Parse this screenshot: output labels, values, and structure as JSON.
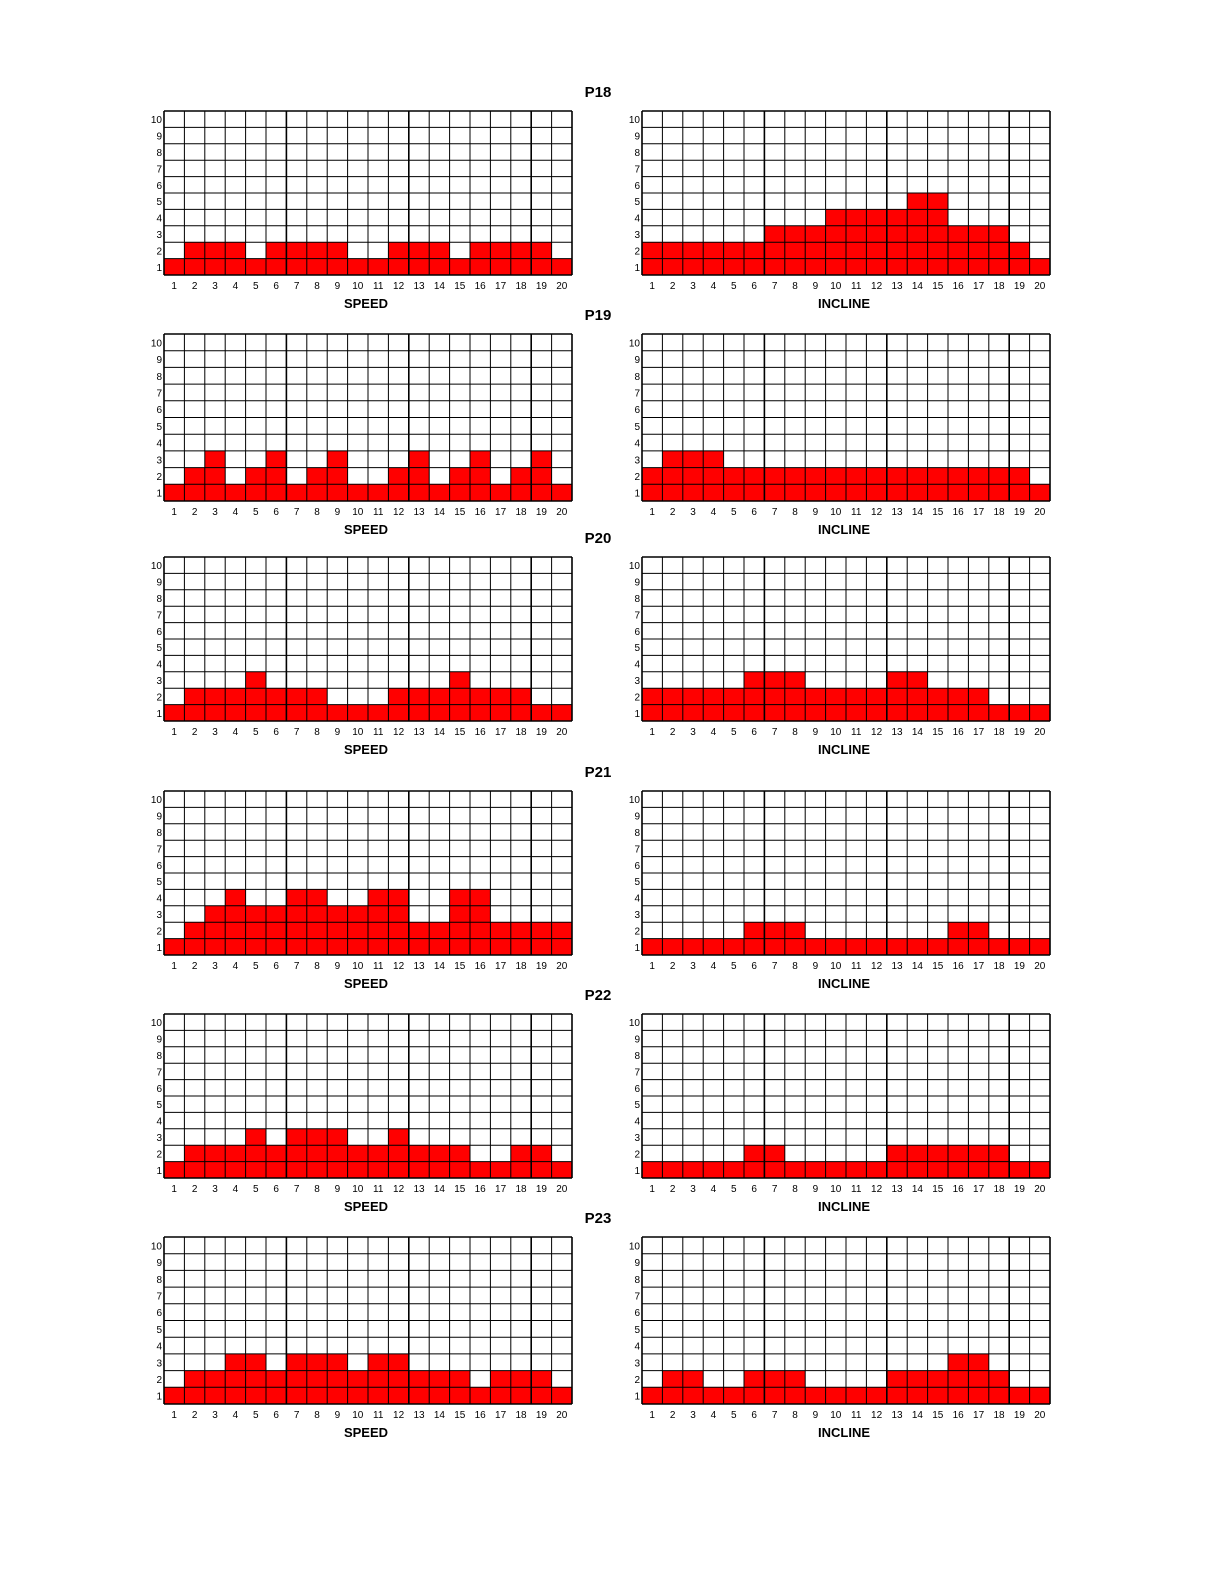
{
  "page": {
    "background": "#ffffff"
  },
  "style": {
    "bar_color": "#ff0000",
    "grid_color": "#000000"
  },
  "chart_data": [
    {
      "type": "bar",
      "program": "P18",
      "xlabel": "SPEED",
      "categories": [
        "1",
        "2",
        "3",
        "4",
        "5",
        "6",
        "7",
        "8",
        "9",
        "10",
        "11",
        "12",
        "13",
        "14",
        "15",
        "16",
        "17",
        "18",
        "19",
        "20"
      ],
      "y_ticks": [
        "1",
        "2",
        "3",
        "4",
        "5",
        "6",
        "7",
        "8",
        "9",
        "10"
      ],
      "ylim": [
        0,
        10
      ],
      "grid": true,
      "values": [
        1,
        2,
        2,
        2,
        1,
        2,
        2,
        2,
        2,
        1,
        1,
        2,
        2,
        2,
        1,
        2,
        2,
        2,
        2,
        1
      ]
    },
    {
      "type": "bar",
      "program": "P18",
      "xlabel": "INCLINE",
      "categories": [
        "1",
        "2",
        "3",
        "4",
        "5",
        "6",
        "7",
        "8",
        "9",
        "10",
        "11",
        "12",
        "13",
        "14",
        "15",
        "16",
        "17",
        "18",
        "19",
        "20"
      ],
      "y_ticks": [
        "1",
        "2",
        "3",
        "4",
        "5",
        "6",
        "7",
        "8",
        "9",
        "10"
      ],
      "ylim": [
        0,
        10
      ],
      "grid": true,
      "values": [
        2,
        2,
        2,
        2,
        2,
        2,
        3,
        3,
        3,
        4,
        4,
        4,
        4,
        5,
        5,
        3,
        3,
        3,
        2,
        1
      ]
    },
    {
      "type": "bar",
      "program": "P19",
      "xlabel": "SPEED",
      "categories": [
        "1",
        "2",
        "3",
        "4",
        "5",
        "6",
        "7",
        "8",
        "9",
        "10",
        "11",
        "12",
        "13",
        "14",
        "15",
        "16",
        "17",
        "18",
        "19",
        "20"
      ],
      "y_ticks": [
        "1",
        "2",
        "3",
        "4",
        "5",
        "6",
        "7",
        "8",
        "9",
        "10"
      ],
      "ylim": [
        0,
        10
      ],
      "grid": true,
      "values": [
        1,
        2,
        3,
        1,
        2,
        3,
        1,
        2,
        3,
        1,
        1,
        2,
        3,
        1,
        2,
        3,
        1,
        2,
        3,
        1
      ]
    },
    {
      "type": "bar",
      "program": "P19",
      "xlabel": "INCLINE",
      "categories": [
        "1",
        "2",
        "3",
        "4",
        "5",
        "6",
        "7",
        "8",
        "9",
        "10",
        "11",
        "12",
        "13",
        "14",
        "15",
        "16",
        "17",
        "18",
        "19",
        "20"
      ],
      "y_ticks": [
        "1",
        "2",
        "3",
        "4",
        "5",
        "6",
        "7",
        "8",
        "9",
        "10"
      ],
      "ylim": [
        0,
        10
      ],
      "grid": true,
      "values": [
        2,
        3,
        3,
        3,
        2,
        2,
        2,
        2,
        2,
        2,
        2,
        2,
        2,
        2,
        2,
        2,
        2,
        2,
        2,
        1
      ]
    },
    {
      "type": "bar",
      "program": "P20",
      "xlabel": "SPEED",
      "categories": [
        "1",
        "2",
        "3",
        "4",
        "5",
        "6",
        "7",
        "8",
        "9",
        "10",
        "11",
        "12",
        "13",
        "14",
        "15",
        "16",
        "17",
        "18",
        "19",
        "20"
      ],
      "y_ticks": [
        "1",
        "2",
        "3",
        "4",
        "5",
        "6",
        "7",
        "8",
        "9",
        "10"
      ],
      "ylim": [
        0,
        10
      ],
      "grid": true,
      "values": [
        1,
        2,
        2,
        2,
        3,
        2,
        2,
        2,
        1,
        1,
        1,
        2,
        2,
        2,
        3,
        2,
        2,
        2,
        1,
        1
      ]
    },
    {
      "type": "bar",
      "program": "P20",
      "xlabel": "INCLINE",
      "categories": [
        "1",
        "2",
        "3",
        "4",
        "5",
        "6",
        "7",
        "8",
        "9",
        "10",
        "11",
        "12",
        "13",
        "14",
        "15",
        "16",
        "17",
        "18",
        "19",
        "20"
      ],
      "y_ticks": [
        "1",
        "2",
        "3",
        "4",
        "5",
        "6",
        "7",
        "8",
        "9",
        "10"
      ],
      "ylim": [
        0,
        10
      ],
      "grid": true,
      "values": [
        2,
        2,
        2,
        2,
        2,
        3,
        3,
        3,
        2,
        2,
        2,
        2,
        3,
        3,
        2,
        2,
        2,
        1,
        1,
        1
      ]
    },
    {
      "type": "bar",
      "program": "P21",
      "xlabel": "SPEED",
      "categories": [
        "1",
        "2",
        "3",
        "4",
        "5",
        "6",
        "7",
        "8",
        "9",
        "10",
        "11",
        "12",
        "13",
        "14",
        "15",
        "16",
        "17",
        "18",
        "19",
        "20"
      ],
      "y_ticks": [
        "1",
        "2",
        "3",
        "4",
        "5",
        "6",
        "7",
        "8",
        "9",
        "10"
      ],
      "ylim": [
        0,
        10
      ],
      "grid": true,
      "values": [
        1,
        2,
        3,
        4,
        3,
        3,
        4,
        4,
        3,
        3,
        4,
        4,
        2,
        2,
        4,
        4,
        2,
        2,
        2,
        2
      ]
    },
    {
      "type": "bar",
      "program": "P21",
      "xlabel": "INCLINE",
      "categories": [
        "1",
        "2",
        "3",
        "4",
        "5",
        "6",
        "7",
        "8",
        "9",
        "10",
        "11",
        "12",
        "13",
        "14",
        "15",
        "16",
        "17",
        "18",
        "19",
        "20"
      ],
      "y_ticks": [
        "1",
        "2",
        "3",
        "4",
        "5",
        "6",
        "7",
        "8",
        "9",
        "10"
      ],
      "ylim": [
        0,
        10
      ],
      "grid": true,
      "values": [
        1,
        1,
        1,
        1,
        1,
        2,
        2,
        2,
        1,
        1,
        1,
        1,
        1,
        1,
        1,
        2,
        2,
        1,
        1,
        1
      ]
    },
    {
      "type": "bar",
      "program": "P22",
      "xlabel": "SPEED",
      "categories": [
        "1",
        "2",
        "3",
        "4",
        "5",
        "6",
        "7",
        "8",
        "9",
        "10",
        "11",
        "12",
        "13",
        "14",
        "15",
        "16",
        "17",
        "18",
        "19",
        "20"
      ],
      "y_ticks": [
        "1",
        "2",
        "3",
        "4",
        "5",
        "6",
        "7",
        "8",
        "9",
        "10"
      ],
      "ylim": [
        0,
        10
      ],
      "grid": true,
      "values": [
        1,
        2,
        2,
        2,
        3,
        2,
        3,
        3,
        3,
        2,
        2,
        3,
        2,
        2,
        2,
        1,
        1,
        2,
        2,
        1
      ]
    },
    {
      "type": "bar",
      "program": "P22",
      "xlabel": "INCLINE",
      "categories": [
        "1",
        "2",
        "3",
        "4",
        "5",
        "6",
        "7",
        "8",
        "9",
        "10",
        "11",
        "12",
        "13",
        "14",
        "15",
        "16",
        "17",
        "18",
        "19",
        "20"
      ],
      "y_ticks": [
        "1",
        "2",
        "3",
        "4",
        "5",
        "6",
        "7",
        "8",
        "9",
        "10"
      ],
      "ylim": [
        0,
        10
      ],
      "grid": true,
      "values": [
        1,
        1,
        1,
        1,
        1,
        2,
        2,
        1,
        1,
        1,
        1,
        1,
        2,
        2,
        2,
        2,
        2,
        2,
        1,
        1
      ]
    },
    {
      "type": "bar",
      "program": "P23",
      "xlabel": "SPEED",
      "categories": [
        "1",
        "2",
        "3",
        "4",
        "5",
        "6",
        "7",
        "8",
        "9",
        "10",
        "11",
        "12",
        "13",
        "14",
        "15",
        "16",
        "17",
        "18",
        "19",
        "20"
      ],
      "y_ticks": [
        "1",
        "2",
        "3",
        "4",
        "5",
        "6",
        "7",
        "8",
        "9",
        "10"
      ],
      "ylim": [
        0,
        10
      ],
      "grid": true,
      "values": [
        1,
        2,
        2,
        3,
        3,
        2,
        3,
        3,
        3,
        2,
        3,
        3,
        2,
        2,
        2,
        1,
        2,
        2,
        2,
        1
      ]
    },
    {
      "type": "bar",
      "program": "P23",
      "xlabel": "INCLINE",
      "categories": [
        "1",
        "2",
        "3",
        "4",
        "5",
        "6",
        "7",
        "8",
        "9",
        "10",
        "11",
        "12",
        "13",
        "14",
        "15",
        "16",
        "17",
        "18",
        "19",
        "20"
      ],
      "y_ticks": [
        "1",
        "2",
        "3",
        "4",
        "5",
        "6",
        "7",
        "8",
        "9",
        "10"
      ],
      "ylim": [
        0,
        10
      ],
      "grid": true,
      "values": [
        1,
        2,
        2,
        1,
        1,
        2,
        2,
        2,
        1,
        1,
        1,
        1,
        2,
        2,
        2,
        3,
        3,
        2,
        1,
        1
      ]
    }
  ]
}
